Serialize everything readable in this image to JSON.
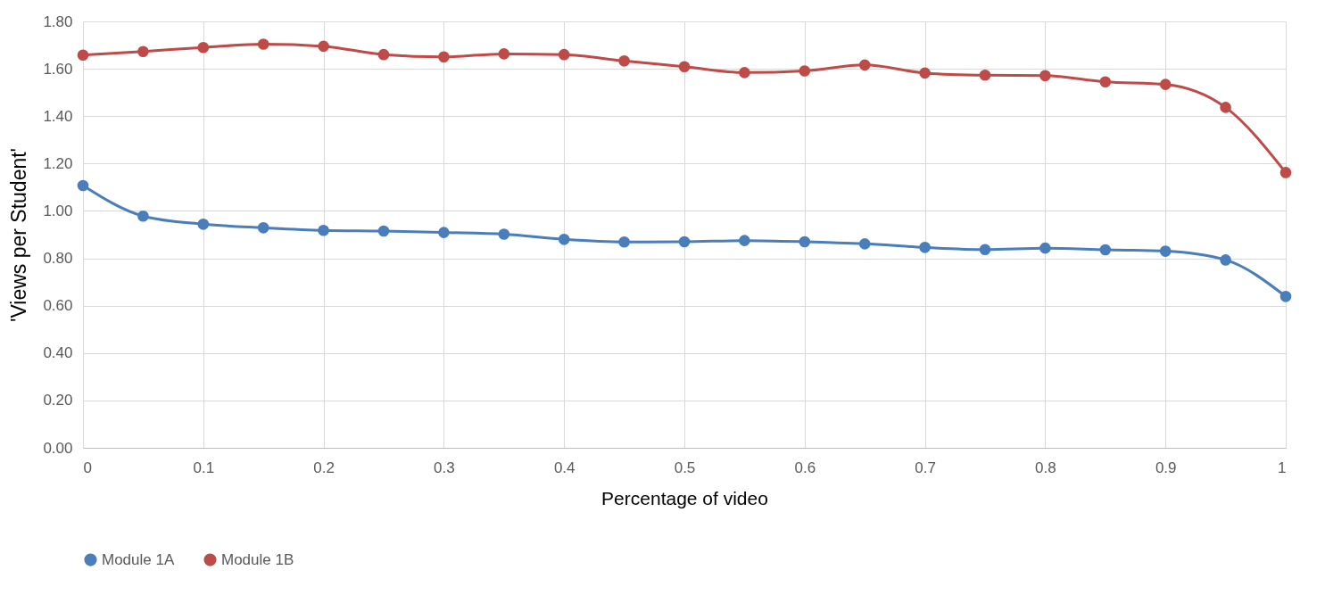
{
  "chart_data": {
    "type": "line",
    "xlabel": "Percentage of video",
    "ylabel": "'Views per Student'",
    "x": [
      0,
      0.05,
      0.1,
      0.15,
      0.2,
      0.25,
      0.3,
      0.35,
      0.4,
      0.45,
      0.5,
      0.55,
      0.6,
      0.65,
      0.7,
      0.75,
      0.8,
      0.85,
      0.9,
      0.95,
      1
    ],
    "series": [
      {
        "name": "Module 1A",
        "color": "#4a7ebb",
        "values": [
          1.107,
          0.978,
          0.944,
          0.929,
          0.918,
          0.915,
          0.909,
          0.902,
          0.88,
          0.869,
          0.87,
          0.875,
          0.87,
          0.861,
          0.846,
          0.837,
          0.843,
          0.836,
          0.83,
          0.793,
          0.639
        ]
      },
      {
        "name": "Module 1B",
        "color": "#be4b48",
        "values": [
          1.658,
          1.673,
          1.69,
          1.704,
          1.695,
          1.66,
          1.65,
          1.663,
          1.66,
          1.633,
          1.609,
          1.584,
          1.591,
          1.616,
          1.582,
          1.573,
          1.571,
          1.545,
          1.534,
          1.437,
          1.162
        ]
      }
    ],
    "xlim": [
      0,
      1
    ],
    "xticks": [
      0,
      0.1,
      0.2,
      0.3,
      0.4,
      0.5,
      0.6,
      0.7,
      0.8,
      0.9,
      1
    ],
    "ylim": [
      0,
      1.8
    ],
    "yticks": [
      {
        "value": 0,
        "label": "0.00"
      },
      {
        "value": 0.2,
        "label": "0.20"
      },
      {
        "value": 0.4,
        "label": "0.40"
      },
      {
        "value": 0.6,
        "label": "0.60"
      },
      {
        "value": 0.8,
        "label": "0.80"
      },
      {
        "value": 1,
        "label": "1.00"
      },
      {
        "value": 1.2,
        "label": "1.20"
      },
      {
        "value": 1.4,
        "label": "1.40"
      },
      {
        "value": 1.6,
        "label": "1.60"
      },
      {
        "value": 1.8,
        "label": "1.80"
      }
    ],
    "grid": true,
    "legend": "bottom",
    "marker": "circle",
    "line_style": "solid"
  }
}
